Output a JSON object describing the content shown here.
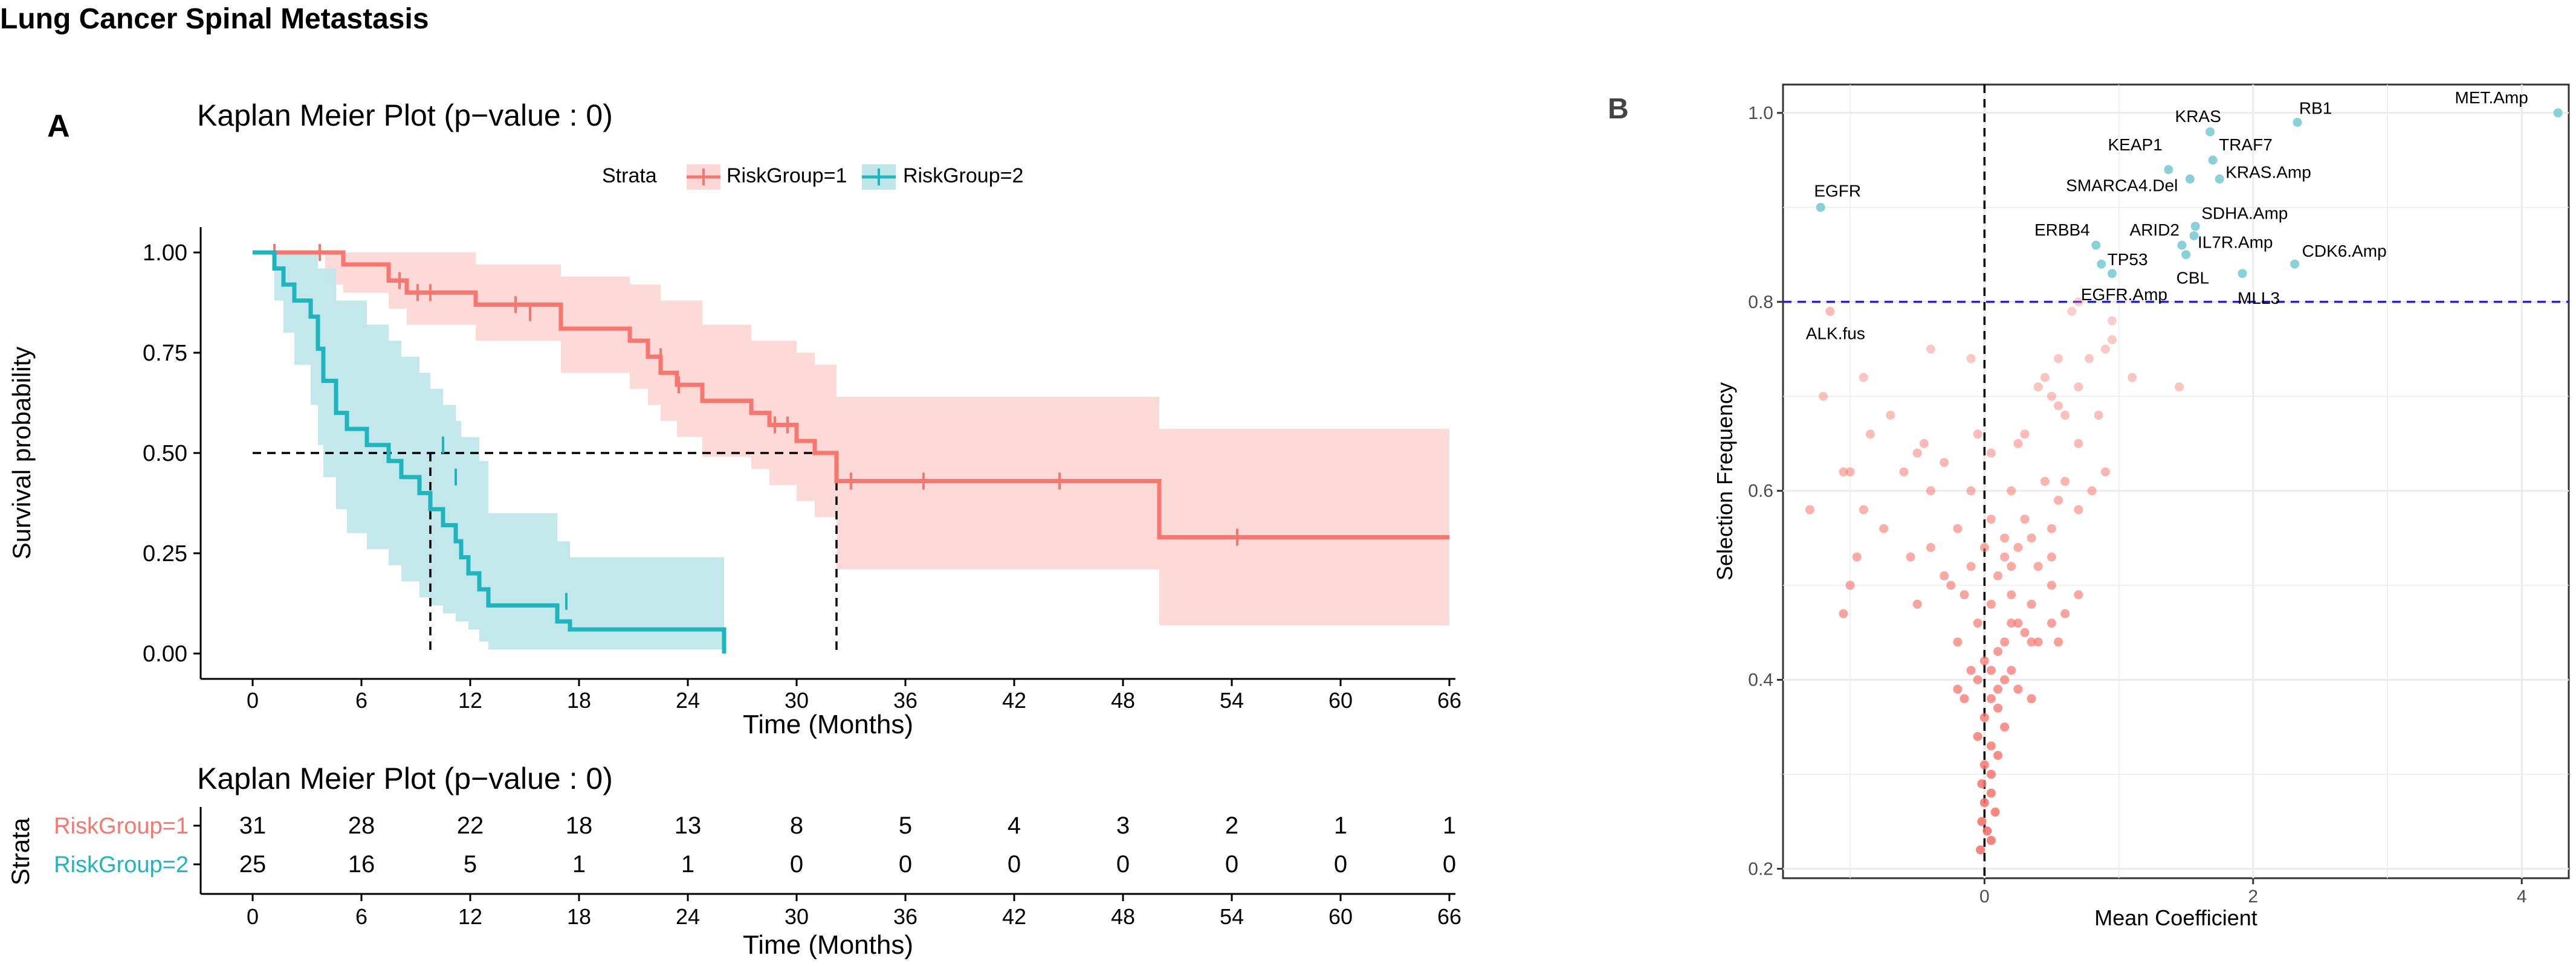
{
  "page": {
    "title": "Lung Cancer Spinal Metastasis",
    "panel_a_label": "A",
    "panel_b_label": "B"
  },
  "colors": {
    "group1": "#F8766D",
    "group1_band": "#FDD7D5",
    "group2": "#1EB6BE",
    "group2_band": "#BFE7EA",
    "teal_points": "#87D1D9",
    "threshold_line": "#2222DD",
    "gridline": "#EBEBEB"
  },
  "chart_data": [
    {
      "type": "line",
      "subtype": "kaplan-meier",
      "title": "Kaplan Meier Plot (p−value : 0)",
      "xlabel": "Time (Months)",
      "ylabel": "Survival probability",
      "xlim": [
        -3,
        66
      ],
      "ylim": [
        0,
        1
      ],
      "xticks": [
        0,
        6,
        12,
        18,
        24,
        30,
        36,
        42,
        48,
        54,
        60,
        66
      ],
      "xtick_labels": [
        "0",
        "6",
        "12",
        "18",
        "24",
        "30",
        "36",
        "42",
        "48",
        "54",
        "60",
        "66"
      ],
      "yticks": [
        0,
        0.25,
        0.5,
        0.75,
        1
      ],
      "ytick_labels": [
        "0.00",
        "0.25",
        "0.50",
        "0.75",
        "1.00"
      ],
      "legend": {
        "title": "Strata",
        "position": "top",
        "entries": [
          "RiskGroup=1",
          "RiskGroup=2"
        ]
      },
      "median_lines": {
        "y": 0.5,
        "x": [
          9.8,
          32.2
        ]
      },
      "series": [
        {
          "name": "RiskGroup=1",
          "steps": [
            [
              0,
              1.0
            ],
            [
              5,
              0.97
            ],
            [
              7.5,
              0.93
            ],
            [
              8.5,
              0.9
            ],
            [
              12.3,
              0.87
            ],
            [
              17,
              0.81
            ],
            [
              20.8,
              0.78
            ],
            [
              21.8,
              0.74
            ],
            [
              22.5,
              0.7
            ],
            [
              23.4,
              0.67
            ],
            [
              24.8,
              0.63
            ],
            [
              27.5,
              0.6
            ],
            [
              28.5,
              0.57
            ],
            [
              30,
              0.53
            ],
            [
              31,
              0.5
            ],
            [
              32.2,
              0.43
            ],
            [
              50,
              0.29
            ],
            [
              66,
              0.29
            ]
          ],
          "censors": [
            [
              1.2,
              1.0
            ],
            [
              3.7,
              1.0
            ],
            [
              8.1,
              0.93
            ],
            [
              9.1,
              0.9
            ],
            [
              9.8,
              0.9
            ],
            [
              14.5,
              0.87
            ],
            [
              15.3,
              0.85
            ],
            [
              22.5,
              0.74
            ],
            [
              23.5,
              0.67
            ],
            [
              28.8,
              0.57
            ],
            [
              29.5,
              0.57
            ],
            [
              33,
              0.43
            ],
            [
              37,
              0.43
            ],
            [
              44.5,
              0.43
            ],
            [
              54.3,
              0.29
            ]
          ],
          "band_upper": [
            [
              0,
              1.0
            ],
            [
              5,
              1.0
            ],
            [
              7.5,
              1.0
            ],
            [
              12.3,
              0.97
            ],
            [
              17,
              0.94
            ],
            [
              20.8,
              0.92
            ],
            [
              22.5,
              0.88
            ],
            [
              24.8,
              0.82
            ],
            [
              27.5,
              0.78
            ],
            [
              30,
              0.75
            ],
            [
              31,
              0.72
            ],
            [
              32.2,
              0.64
            ],
            [
              50,
              0.56
            ],
            [
              66,
              0.56
            ]
          ],
          "band_lower": [
            [
              0,
              1.0
            ],
            [
              4,
              0.92
            ],
            [
              5,
              0.9
            ],
            [
              7.5,
              0.86
            ],
            [
              8.5,
              0.82
            ],
            [
              12.3,
              0.78
            ],
            [
              17,
              0.7
            ],
            [
              20.8,
              0.66
            ],
            [
              21.8,
              0.62
            ],
            [
              22.5,
              0.58
            ],
            [
              23.4,
              0.54
            ],
            [
              24.8,
              0.49
            ],
            [
              27.5,
              0.46
            ],
            [
              28.5,
              0.42
            ],
            [
              30,
              0.38
            ],
            [
              31,
              0.34
            ],
            [
              32.2,
              0.21
            ],
            [
              50,
              0.07
            ],
            [
              66,
              0.07
            ]
          ]
        },
        {
          "name": "RiskGroup=2",
          "steps": [
            [
              0,
              1.0
            ],
            [
              1.2,
              0.96
            ],
            [
              1.7,
              0.92
            ],
            [
              2.3,
              0.88
            ],
            [
              3.2,
              0.84
            ],
            [
              3.6,
              0.76
            ],
            [
              3.9,
              0.68
            ],
            [
              4.6,
              0.6
            ],
            [
              5.2,
              0.56
            ],
            [
              6.3,
              0.52
            ],
            [
              7.5,
              0.48
            ],
            [
              8.2,
              0.44
            ],
            [
              9.2,
              0.4
            ],
            [
              9.8,
              0.36
            ],
            [
              10.5,
              0.32
            ],
            [
              11.2,
              0.28
            ],
            [
              11.5,
              0.24
            ],
            [
              11.9,
              0.2
            ],
            [
              12.5,
              0.16
            ],
            [
              13,
              0.12
            ],
            [
              16.8,
              0.08
            ],
            [
              17.5,
              0.06
            ],
            [
              26,
              0.06
            ],
            [
              26,
              0.0
            ]
          ],
          "censors": [
            [
              10.5,
              0.52
            ],
            [
              11.2,
              0.44
            ],
            [
              17.3,
              0.13
            ]
          ],
          "band_upper": [
            [
              0,
              1.0
            ],
            [
              1.2,
              1.0
            ],
            [
              2.3,
              1.0
            ],
            [
              3.6,
              0.96
            ],
            [
              4.6,
              0.88
            ],
            [
              6.3,
              0.82
            ],
            [
              7.5,
              0.78
            ],
            [
              8.2,
              0.74
            ],
            [
              9.2,
              0.7
            ],
            [
              9.8,
              0.66
            ],
            [
              10.5,
              0.62
            ],
            [
              11.2,
              0.58
            ],
            [
              11.5,
              0.54
            ],
            [
              12.5,
              0.48
            ],
            [
              13,
              0.35
            ],
            [
              16.8,
              0.28
            ],
            [
              17.5,
              0.24
            ],
            [
              26,
              0.24
            ]
          ],
          "band_lower": [
            [
              0,
              1.0
            ],
            [
              1.2,
              0.88
            ],
            [
              1.7,
              0.8
            ],
            [
              2.3,
              0.72
            ],
            [
              3.2,
              0.62
            ],
            [
              3.6,
              0.52
            ],
            [
              3.9,
              0.44
            ],
            [
              4.6,
              0.36
            ],
            [
              5.2,
              0.3
            ],
            [
              6.3,
              0.26
            ],
            [
              7.5,
              0.22
            ],
            [
              8.2,
              0.18
            ],
            [
              9.2,
              0.14
            ],
            [
              9.8,
              0.12
            ],
            [
              10.5,
              0.1
            ],
            [
              11.2,
              0.08
            ],
            [
              11.9,
              0.06
            ],
            [
              12.5,
              0.03
            ],
            [
              13,
              0.01
            ],
            [
              26,
              0.0
            ]
          ]
        }
      ]
    },
    {
      "type": "table",
      "title": "Kaplan Meier Plot (p−value : 0)",
      "ylabel": "Strata",
      "xlabel": "Time (Months)",
      "times": [
        0,
        6,
        12,
        18,
        24,
        30,
        36,
        42,
        48,
        54,
        60,
        66
      ],
      "time_labels": [
        "0",
        "6",
        "12",
        "18",
        "24",
        "30",
        "36",
        "42",
        "48",
        "54",
        "60",
        "66"
      ],
      "rows": [
        {
          "name": "RiskGroup=1",
          "counts": [
            "31",
            "28",
            "22",
            "18",
            "13",
            "8",
            "5",
            "4",
            "3",
            "2",
            "1",
            "1"
          ]
        },
        {
          "name": "RiskGroup=2",
          "counts": [
            "25",
            "16",
            "5",
            "1",
            "1",
            "0",
            "0",
            "0",
            "0",
            "0",
            "0",
            "0"
          ]
        }
      ]
    },
    {
      "type": "scatter",
      "xlabel": "Mean Coefficient",
      "ylabel": "Selection Frequency",
      "xlim": [
        -1.5,
        4.35
      ],
      "ylim": [
        0.19,
        1.03
      ],
      "xticks": [
        0,
        2,
        4
      ],
      "xtick_labels": [
        "0",
        "2",
        "4"
      ],
      "yticks": [
        0.2,
        0.4,
        0.6,
        0.8,
        1.0
      ],
      "ytick_labels": [
        "0.2",
        "0.4",
        "0.6",
        "0.8",
        "1.0"
      ],
      "hline": 0.8,
      "vline": 0,
      "labeled_points": [
        {
          "label": "MET.Amp",
          "x": 4.27,
          "y": 1.0
        },
        {
          "label": "RB1",
          "x": 2.33,
          "y": 0.99
        },
        {
          "label": "KRAS",
          "x": 1.68,
          "y": 0.98
        },
        {
          "label": "TRAF7",
          "x": 1.7,
          "y": 0.95
        },
        {
          "label": "KEAP1",
          "x": 1.37,
          "y": 0.94
        },
        {
          "label": "KRAS.Amp",
          "x": 1.75,
          "y": 0.93
        },
        {
          "label": "SMARCA4.Del",
          "x": 1.53,
          "y": 0.93
        },
        {
          "label": "EGFR",
          "x": -1.22,
          "y": 0.9
        },
        {
          "label": "SDHA.Amp",
          "x": 1.57,
          "y": 0.88
        },
        {
          "label": "ARID2",
          "x": 1.47,
          "y": 0.86
        },
        {
          "label": "IL7R.Amp",
          "x": 1.56,
          "y": 0.87
        },
        {
          "label": "ERBB4",
          "x": 0.83,
          "y": 0.86
        },
        {
          "label": "CDK6.Amp",
          "x": 2.31,
          "y": 0.84
        },
        {
          "label": "TP53",
          "x": 0.87,
          "y": 0.84
        },
        {
          "label": "CBL",
          "x": 1.5,
          "y": 0.85
        },
        {
          "label": "MLL3",
          "x": 1.92,
          "y": 0.83
        },
        {
          "label": "EGFR.Amp",
          "x": 0.95,
          "y": 0.83
        },
        {
          "label": "ALK.fus",
          "x": -1.15,
          "y": 0.79
        }
      ],
      "points": [
        [
          0.7,
          0.8
        ],
        [
          0.65,
          0.79
        ],
        [
          0.95,
          0.78
        ],
        [
          0.95,
          0.76
        ],
        [
          0.9,
          0.75
        ],
        [
          -0.4,
          0.75
        ],
        [
          -0.1,
          0.74
        ],
        [
          0.55,
          0.74
        ],
        [
          0.78,
          0.74
        ],
        [
          -0.9,
          0.72
        ],
        [
          0.45,
          0.72
        ],
        [
          1.1,
          0.72
        ],
        [
          0.4,
          0.71
        ],
        [
          0.7,
          0.71
        ],
        [
          1.45,
          0.71
        ],
        [
          -1.2,
          0.7
        ],
        [
          0.5,
          0.7
        ],
        [
          0.55,
          0.69
        ],
        [
          0.6,
          0.68
        ],
        [
          -0.7,
          0.68
        ],
        [
          0.85,
          0.68
        ],
        [
          0.3,
          0.66
        ],
        [
          -0.85,
          0.66
        ],
        [
          -0.05,
          0.66
        ],
        [
          0.25,
          0.65
        ],
        [
          -0.45,
          0.65
        ],
        [
          0.7,
          0.65
        ],
        [
          -0.5,
          0.64
        ],
        [
          0.05,
          0.64
        ],
        [
          -0.3,
          0.63
        ],
        [
          -0.6,
          0.62
        ],
        [
          -1.0,
          0.62
        ],
        [
          -1.05,
          0.62
        ],
        [
          0.9,
          0.62
        ],
        [
          0.45,
          0.61
        ],
        [
          0.6,
          0.61
        ],
        [
          0.8,
          0.6
        ],
        [
          -0.4,
          0.6
        ],
        [
          0.2,
          0.6
        ],
        [
          -0.1,
          0.6
        ],
        [
          0.55,
          0.59
        ],
        [
          -0.9,
          0.58
        ],
        [
          -1.3,
          0.58
        ],
        [
          0.7,
          0.58
        ],
        [
          0.3,
          0.57
        ],
        [
          0.05,
          0.57
        ],
        [
          -0.2,
          0.56
        ],
        [
          0.5,
          0.56
        ],
        [
          -0.75,
          0.56
        ],
        [
          0.15,
          0.55
        ],
        [
          0.35,
          0.55
        ],
        [
          0.0,
          0.54
        ],
        [
          0.25,
          0.54
        ],
        [
          -0.4,
          0.54
        ],
        [
          0.5,
          0.53
        ],
        [
          -0.55,
          0.53
        ],
        [
          -0.95,
          0.53
        ],
        [
          0.15,
          0.53
        ],
        [
          0.4,
          0.52
        ],
        [
          -0.1,
          0.52
        ],
        [
          0.2,
          0.52
        ],
        [
          0.1,
          0.51
        ],
        [
          -0.3,
          0.51
        ],
        [
          -1.0,
          0.5
        ],
        [
          0.5,
          0.5
        ],
        [
          0.7,
          0.49
        ],
        [
          -0.25,
          0.5
        ],
        [
          -0.15,
          0.49
        ],
        [
          0.2,
          0.49
        ],
        [
          0.05,
          0.48
        ],
        [
          0.35,
          0.48
        ],
        [
          -0.5,
          0.48
        ],
        [
          0.6,
          0.47
        ],
        [
          -1.05,
          0.47
        ],
        [
          0.2,
          0.46
        ],
        [
          0.25,
          0.46
        ],
        [
          -0.05,
          0.46
        ],
        [
          0.5,
          0.46
        ],
        [
          0.3,
          0.45
        ],
        [
          0.4,
          0.44
        ],
        [
          0.35,
          0.44
        ],
        [
          0.15,
          0.44
        ],
        [
          -0.2,
          0.44
        ],
        [
          0.55,
          0.44
        ],
        [
          0.1,
          0.43
        ],
        [
          0.0,
          0.42
        ],
        [
          -0.1,
          0.41
        ],
        [
          0.05,
          0.41
        ],
        [
          0.2,
          0.41
        ],
        [
          0.15,
          0.4
        ],
        [
          -0.05,
          0.4
        ],
        [
          0.1,
          0.39
        ],
        [
          -0.2,
          0.39
        ],
        [
          0.25,
          0.39
        ],
        [
          -0.15,
          0.38
        ],
        [
          0.05,
          0.38
        ],
        [
          0.35,
          0.38
        ],
        [
          0.1,
          0.37
        ],
        [
          0.0,
          0.36
        ],
        [
          0.15,
          0.35
        ],
        [
          -0.05,
          0.34
        ],
        [
          0.05,
          0.33
        ],
        [
          0.1,
          0.32
        ],
        [
          0.0,
          0.31
        ],
        [
          0.05,
          0.3
        ],
        [
          -0.02,
          0.29
        ],
        [
          0.05,
          0.28
        ],
        [
          0.0,
          0.27
        ],
        [
          0.08,
          0.26
        ],
        [
          -0.02,
          0.25
        ],
        [
          0.02,
          0.24
        ],
        [
          0.05,
          0.23
        ],
        [
          -0.03,
          0.22
        ]
      ]
    }
  ]
}
